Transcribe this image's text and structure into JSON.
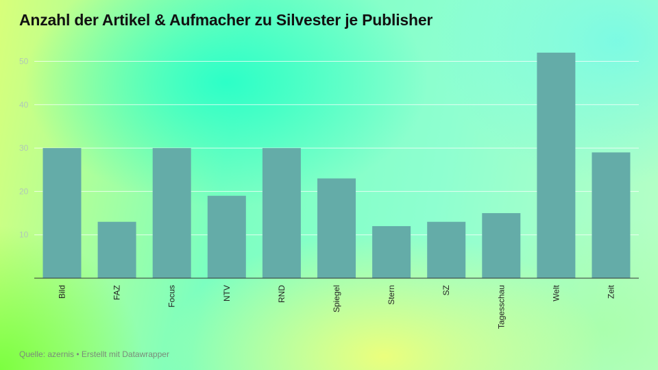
{
  "chart_data": {
    "type": "bar",
    "title": "Anzahl der Artikel & Aufmacher zu Silvester je Publisher",
    "categories": [
      "Bild",
      "FAZ",
      "Focus",
      "NTV",
      "RND",
      "Spiegel",
      "Stern",
      "SZ",
      "Tagesschau",
      "Welt",
      "Zeit"
    ],
    "values": [
      30,
      13,
      30,
      19,
      30,
      23,
      12,
      13,
      15,
      52,
      29
    ],
    "yticks": [
      "10",
      "20",
      "30",
      "40",
      "50"
    ],
    "ylim": [
      0,
      55
    ],
    "grid": true,
    "bar_color": "#64aca8",
    "xlabel": "",
    "ylabel": ""
  },
  "footer": {
    "source": "Quelle: azernis • Erstellt mit Datawrapper"
  }
}
